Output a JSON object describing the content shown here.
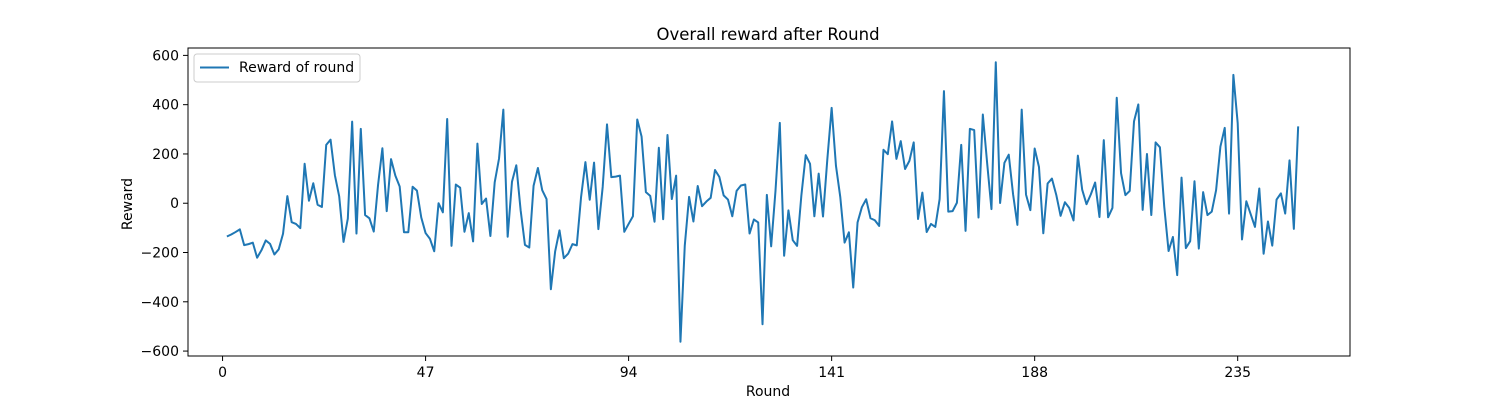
{
  "chart_data": {
    "type": "line",
    "title": "Overall reward after Round",
    "xlabel": "Round",
    "ylabel": "Reward",
    "xlim": [
      -8,
      261
    ],
    "ylim": [
      -620,
      630
    ],
    "xticks": [
      0,
      47,
      94,
      141,
      188,
      235
    ],
    "yticks": [
      -600,
      -400,
      -200,
      0,
      200,
      400,
      600
    ],
    "grid": false,
    "legend_position": "top-left",
    "series": [
      {
        "name": "Reward of round",
        "color": "#1f77b4",
        "x_start": 1,
        "values": [
          -135,
          -127,
          -117,
          -106,
          -170,
          -166,
          -160,
          -221,
          -191,
          -151,
          -165,
          -208,
          -187,
          -124,
          29,
          -77,
          -84,
          -101,
          160,
          10,
          81,
          -6,
          -15,
          237,
          258,
          114,
          28,
          -157,
          -62,
          331,
          -123,
          302,
          -48,
          -61,
          -115,
          75,
          223,
          -32,
          179,
          112,
          68,
          -118,
          -118,
          67,
          51,
          -58,
          -121,
          -144,
          -195,
          0,
          -37,
          342,
          -173,
          76,
          63,
          -116,
          -40,
          -155,
          242,
          -3,
          19,
          -133,
          85,
          181,
          380,
          -136,
          87,
          154,
          -28,
          -169,
          -180,
          71,
          143,
          53,
          17,
          -349,
          -195,
          -110,
          -223,
          -205,
          -166,
          -171,
          26,
          167,
          14,
          165,
          -105,
          66,
          320,
          106,
          108,
          112,
          -116,
          -84,
          -53,
          340,
          271,
          45,
          30,
          -75,
          225,
          -65,
          277,
          17,
          112,
          -562,
          -172,
          26,
          -74,
          70,
          -12,
          7,
          22,
          135,
          107,
          32,
          15,
          -53,
          50,
          72,
          76,
          -123,
          -66,
          -78,
          -491,
          34,
          -175,
          50,
          326,
          -213,
          -29,
          -150,
          -173,
          33,
          195,
          160,
          -53,
          120,
          -54,
          178,
          387,
          152,
          25,
          -160,
          -118,
          -342,
          -78,
          -16,
          16,
          -61,
          -69,
          -92,
          217,
          199,
          332,
          180,
          252,
          139,
          172,
          247,
          -64,
          43,
          -117,
          -84,
          -96,
          17,
          455,
          -34,
          -32,
          2,
          237,
          -112,
          302,
          297,
          -58,
          360,
          163,
          -24,
          572,
          1,
          164,
          197,
          37,
          -88,
          380,
          35,
          -28,
          222,
          147,
          -122,
          80,
          100,
          34,
          -51,
          4,
          -19,
          -70,
          193,
          55,
          -4,
          36,
          84,
          -56,
          256,
          -57,
          -19,
          428,
          122,
          33,
          50,
          332,
          401,
          -27,
          200,
          -48,
          247,
          227,
          -14,
          -194,
          -137,
          -292,
          104,
          -182,
          -154,
          89,
          -184,
          45,
          -48,
          -34,
          53,
          230,
          306,
          -42,
          521,
          325,
          -147,
          8,
          -44,
          -96,
          60,
          -205,
          -74,
          -172,
          15,
          40,
          -42,
          174,
          -104,
          312
        ]
      }
    ]
  }
}
